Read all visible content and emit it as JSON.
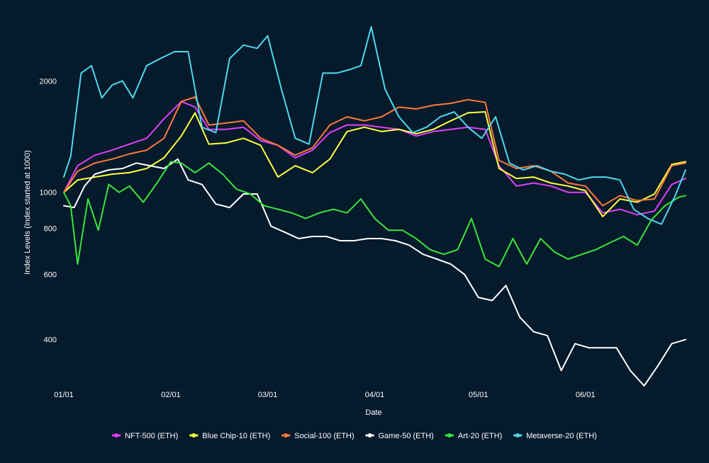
{
  "chart_data": {
    "type": "line",
    "xlabel": "Date",
    "ylabel": "Index Levels (Index started at 1000)",
    "y_scale": "log",
    "ylim": [
      300,
      2900
    ],
    "xlim": [
      "2022-01-01",
      "2022-06-30"
    ],
    "y_ticks": [
      {
        "value": 400,
        "label": "400"
      },
      {
        "value": 600,
        "label": "600"
      },
      {
        "value": 800,
        "label": "800"
      },
      {
        "value": 1000,
        "label": "1000"
      },
      {
        "value": 2000,
        "label": "2000"
      }
    ],
    "x_ticks": [
      {
        "value": "2022-01-01",
        "label": "01/01"
      },
      {
        "value": "2022-02-01",
        "label": "02/01"
      },
      {
        "value": "2022-03-01",
        "label": "03/01"
      },
      {
        "value": "2022-04-01",
        "label": "04/01"
      },
      {
        "value": "2022-05-01",
        "label": "05/01"
      },
      {
        "value": "2022-06-01",
        "label": "06/01"
      }
    ],
    "grid": false,
    "legend_position": "bottom-center",
    "series": [
      {
        "name": "NFT-500 (ETH)",
        "color": "#e040fb",
        "x": [
          "2022-01-01",
          "2022-01-05",
          "2022-01-10",
          "2022-01-15",
          "2022-01-20",
          "2022-01-25",
          "2022-01-30",
          "2022-02-04",
          "2022-02-08",
          "2022-02-12",
          "2022-02-17",
          "2022-02-22",
          "2022-02-27",
          "2022-03-04",
          "2022-03-09",
          "2022-03-14",
          "2022-03-19",
          "2022-03-24",
          "2022-03-29",
          "2022-04-03",
          "2022-04-08",
          "2022-04-13",
          "2022-04-18",
          "2022-04-23",
          "2022-04-28",
          "2022-05-03",
          "2022-05-07",
          "2022-05-12",
          "2022-05-17",
          "2022-05-22",
          "2022-05-27",
          "2022-06-01",
          "2022-06-06",
          "2022-06-11",
          "2022-06-16",
          "2022-06-21",
          "2022-06-26",
          "2022-06-30"
        ],
        "values": [
          1000,
          1180,
          1260,
          1300,
          1350,
          1400,
          1580,
          1760,
          1700,
          1480,
          1480,
          1500,
          1380,
          1340,
          1240,
          1300,
          1450,
          1520,
          1520,
          1500,
          1480,
          1420,
          1460,
          1480,
          1500,
          1480,
          1180,
          1040,
          1060,
          1040,
          1000,
          1000,
          880,
          900,
          870,
          890,
          1050,
          1090
        ]
      },
      {
        "name": "Blue Chip-10 (ETH)",
        "color": "#ffff40",
        "x": [
          "2022-01-01",
          "2022-01-05",
          "2022-01-10",
          "2022-01-15",
          "2022-01-20",
          "2022-01-25",
          "2022-01-30",
          "2022-02-04",
          "2022-02-08",
          "2022-02-12",
          "2022-02-17",
          "2022-02-22",
          "2022-02-27",
          "2022-03-04",
          "2022-03-09",
          "2022-03-14",
          "2022-03-19",
          "2022-03-24",
          "2022-03-29",
          "2022-04-03",
          "2022-04-08",
          "2022-04-13",
          "2022-04-18",
          "2022-04-23",
          "2022-04-28",
          "2022-05-03",
          "2022-05-07",
          "2022-05-12",
          "2022-05-17",
          "2022-05-22",
          "2022-05-27",
          "2022-06-01",
          "2022-06-06",
          "2022-06-11",
          "2022-06-16",
          "2022-06-21",
          "2022-06-26",
          "2022-06-30"
        ],
        "values": [
          1000,
          1080,
          1100,
          1120,
          1130,
          1160,
          1240,
          1420,
          1640,
          1350,
          1360,
          1400,
          1340,
          1100,
          1180,
          1130,
          1230,
          1460,
          1500,
          1460,
          1480,
          1440,
          1480,
          1560,
          1640,
          1650,
          1160,
          1090,
          1100,
          1060,
          1040,
          1010,
          860,
          960,
          940,
          990,
          1190,
          1210
        ]
      },
      {
        "name": "Social-100 (ETH)",
        "color": "#ff7a3a",
        "x": [
          "2022-01-01",
          "2022-01-05",
          "2022-01-10",
          "2022-01-15",
          "2022-01-20",
          "2022-01-25",
          "2022-01-30",
          "2022-02-04",
          "2022-02-08",
          "2022-02-12",
          "2022-02-17",
          "2022-02-22",
          "2022-02-27",
          "2022-03-04",
          "2022-03-09",
          "2022-03-14",
          "2022-03-19",
          "2022-03-24",
          "2022-03-29",
          "2022-04-03",
          "2022-04-08",
          "2022-04-13",
          "2022-04-18",
          "2022-04-23",
          "2022-04-28",
          "2022-05-03",
          "2022-05-07",
          "2022-05-12",
          "2022-05-17",
          "2022-05-22",
          "2022-05-27",
          "2022-06-01",
          "2022-06-06",
          "2022-06-11",
          "2022-06-16",
          "2022-06-21",
          "2022-06-26",
          "2022-06-30"
        ],
        "values": [
          1000,
          1140,
          1200,
          1230,
          1270,
          1300,
          1400,
          1760,
          1810,
          1520,
          1540,
          1560,
          1400,
          1340,
          1260,
          1320,
          1520,
          1600,
          1560,
          1600,
          1700,
          1680,
          1720,
          1740,
          1780,
          1750,
          1220,
          1160,
          1180,
          1140,
          1060,
          1040,
          920,
          980,
          950,
          960,
          1180,
          1200
        ]
      },
      {
        "name": "Game-50 (ETH)",
        "color": "#ffffff",
        "x": [
          "2022-01-01",
          "2022-01-04",
          "2022-01-07",
          "2022-01-10",
          "2022-01-14",
          "2022-01-18",
          "2022-01-22",
          "2022-01-26",
          "2022-01-30",
          "2022-02-03",
          "2022-02-06",
          "2022-02-10",
          "2022-02-14",
          "2022-02-18",
          "2022-02-22",
          "2022-02-26",
          "2022-03-02",
          "2022-03-06",
          "2022-03-10",
          "2022-03-14",
          "2022-03-18",
          "2022-03-22",
          "2022-03-26",
          "2022-03-30",
          "2022-04-03",
          "2022-04-07",
          "2022-04-11",
          "2022-04-15",
          "2022-04-19",
          "2022-04-23",
          "2022-04-27",
          "2022-05-01",
          "2022-05-05",
          "2022-05-09",
          "2022-05-13",
          "2022-05-17",
          "2022-05-21",
          "2022-05-25",
          "2022-05-29",
          "2022-06-02",
          "2022-06-06",
          "2022-06-10",
          "2022-06-14",
          "2022-06-18",
          "2022-06-22",
          "2022-06-26",
          "2022-06-30"
        ],
        "values": [
          920,
          910,
          1040,
          1120,
          1150,
          1160,
          1200,
          1180,
          1160,
          1230,
          1080,
          1050,
          930,
          910,
          990,
          990,
          810,
          780,
          750,
          760,
          760,
          740,
          740,
          750,
          750,
          740,
          720,
          680,
          660,
          640,
          600,
          520,
          510,
          560,
          460,
          420,
          410,
          330,
          390,
          380,
          380,
          380,
          330,
          300,
          340,
          390,
          400
        ]
      },
      {
        "name": "Art-20 (ETH)",
        "color": "#39e63a",
        "x": [
          "2022-01-01",
          "2022-01-03",
          "2022-01-05",
          "2022-01-08",
          "2022-01-11",
          "2022-01-14",
          "2022-01-17",
          "2022-01-20",
          "2022-01-24",
          "2022-01-28",
          "2022-02-01",
          "2022-02-04",
          "2022-02-08",
          "2022-02-12",
          "2022-02-16",
          "2022-02-20",
          "2022-02-24",
          "2022-02-28",
          "2022-03-04",
          "2022-03-08",
          "2022-03-12",
          "2022-03-16",
          "2022-03-20",
          "2022-03-24",
          "2022-03-28",
          "2022-04-01",
          "2022-04-05",
          "2022-04-09",
          "2022-04-13",
          "2022-04-17",
          "2022-04-21",
          "2022-04-25",
          "2022-04-29",
          "2022-05-03",
          "2022-05-07",
          "2022-05-11",
          "2022-05-15",
          "2022-05-19",
          "2022-05-23",
          "2022-05-27",
          "2022-05-31",
          "2022-06-04",
          "2022-06-08",
          "2022-06-12",
          "2022-06-16",
          "2022-06-20",
          "2022-06-24",
          "2022-06-28",
          "2022-06-30"
        ],
        "values": [
          1000,
          920,
          640,
          960,
          790,
          1050,
          1000,
          1040,
          940,
          1060,
          1210,
          1200,
          1130,
          1200,
          1120,
          1020,
          990,
          920,
          900,
          880,
          850,
          880,
          900,
          880,
          960,
          850,
          790,
          790,
          750,
          700,
          680,
          700,
          850,
          660,
          630,
          750,
          640,
          750,
          690,
          660,
          680,
          700,
          730,
          760,
          720,
          840,
          920,
          970,
          980
        ]
      },
      {
        "name": "Metaverse-20 (ETH)",
        "color": "#4dd9f0",
        "x": [
          "2022-01-01",
          "2022-01-03",
          "2022-01-06",
          "2022-01-09",
          "2022-01-12",
          "2022-01-15",
          "2022-01-18",
          "2022-01-21",
          "2022-01-25",
          "2022-01-29",
          "2022-02-02",
          "2022-02-06",
          "2022-02-10",
          "2022-02-14",
          "2022-02-18",
          "2022-02-22",
          "2022-02-26",
          "2022-03-01",
          "2022-03-05",
          "2022-03-09",
          "2022-03-13",
          "2022-03-17",
          "2022-03-21",
          "2022-03-25",
          "2022-03-28",
          "2022-03-31",
          "2022-04-04",
          "2022-04-08",
          "2022-04-12",
          "2022-04-16",
          "2022-04-20",
          "2022-04-24",
          "2022-04-28",
          "2022-05-02",
          "2022-05-06",
          "2022-05-10",
          "2022-05-14",
          "2022-05-18",
          "2022-05-22",
          "2022-05-26",
          "2022-05-30",
          "2022-06-03",
          "2022-06-07",
          "2022-06-11",
          "2022-06-15",
          "2022-06-19",
          "2022-06-23",
          "2022-06-27",
          "2022-06-30"
        ],
        "values": [
          1100,
          1250,
          2100,
          2200,
          1800,
          1950,
          2000,
          1800,
          2200,
          2300,
          2400,
          2400,
          1500,
          1450,
          2300,
          2500,
          2450,
          2650,
          1900,
          1400,
          1350,
          2100,
          2100,
          2150,
          2200,
          2800,
          1900,
          1600,
          1450,
          1500,
          1600,
          1650,
          1500,
          1400,
          1600,
          1200,
          1150,
          1180,
          1140,
          1120,
          1080,
          1100,
          1100,
          1080,
          900,
          850,
          820,
          980,
          1150
        ]
      }
    ]
  }
}
